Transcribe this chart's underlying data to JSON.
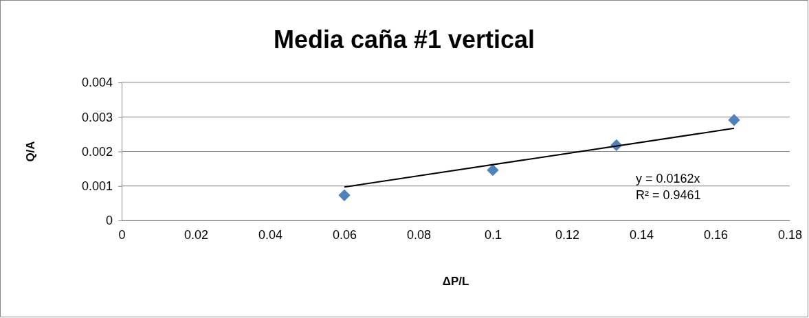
{
  "chart_data": {
    "type": "scatter",
    "title": "Media caña #1 vertical",
    "xlabel": "ΔP/L",
    "ylabel": "Q/A",
    "xlim": [
      0,
      0.18
    ],
    "xticks": [
      0,
      0.02,
      0.04,
      0.06,
      0.08,
      0.1,
      0.12,
      0.14,
      0.16,
      0.18
    ],
    "ylim": [
      0,
      0.004
    ],
    "yticks": [
      0,
      0.001,
      0.002,
      0.003,
      0.004
    ],
    "grid": "y",
    "marker": "diamond",
    "series": [
      {
        "color": "#4f81bd",
        "x": [
          0.06,
          0.1,
          0.1333,
          0.165
        ],
        "values": [
          0.00073,
          0.00146,
          0.00218,
          0.00291
        ]
      },
      {
        "type": "line",
        "color": "#000000",
        "marker": "none",
        "x": [
          0.06,
          0.165
        ],
        "values": [
          0.00097,
          0.00267
        ]
      }
    ],
    "annotations": [
      "y = 0.0162x",
      "R² = 0.9461"
    ]
  }
}
